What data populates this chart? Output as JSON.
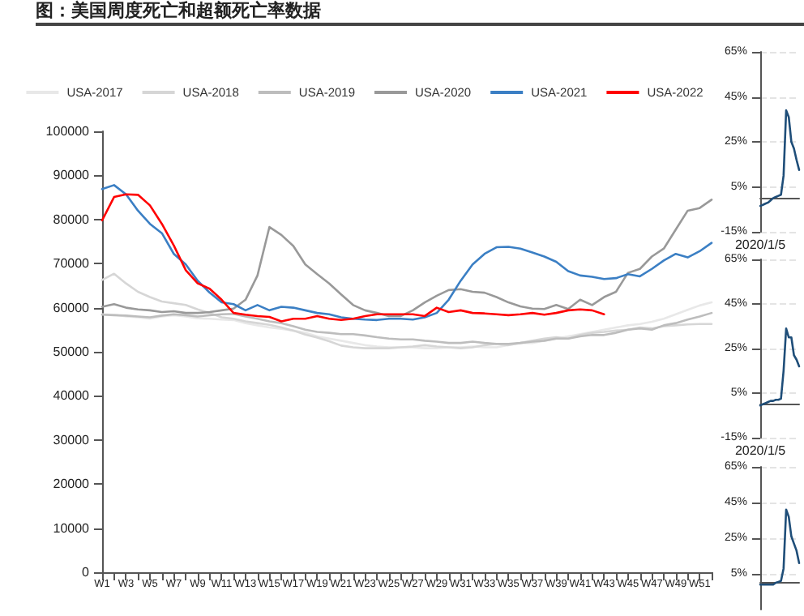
{
  "chart_data": [
    {
      "type": "line",
      "title": "图：美国周度死亡和超额死亡率数据",
      "categories": [
        "W1",
        null,
        "W3",
        null,
        "W5",
        null,
        "W7",
        null,
        "W9",
        null,
        "W11",
        null,
        "W13",
        null,
        "W15",
        null,
        "W17",
        null,
        "W19",
        null,
        "W21",
        null,
        "W23",
        null,
        "W25",
        null,
        "W27",
        null,
        "W29",
        null,
        "W31",
        null,
        "W33",
        null,
        "W35",
        null,
        "W37",
        null,
        "W39",
        null,
        "W41",
        null,
        "W43",
        null,
        "W45",
        null,
        "W47",
        null,
        "W49",
        null,
        "W51",
        null
      ],
      "ylim": [
        0,
        100000
      ],
      "yticks": [
        0,
        10000,
        20000,
        30000,
        40000,
        50000,
        60000,
        70000,
        80000,
        90000,
        100000
      ],
      "grid": false,
      "legend": "top",
      "marker": "none",
      "line_style": "solid",
      "series": [
        {
          "name": "USA-2017",
          "color": "#e8e8e8",
          "values": [
            58500,
            58400,
            58000,
            57800,
            57500,
            58000,
            58300,
            58000,
            57600,
            57500,
            57300,
            57200,
            56500,
            56000,
            55500,
            55200,
            54800,
            54300,
            53500,
            53000,
            52500,
            52000,
            51500,
            51200,
            51000,
            51000,
            51000,
            50800,
            50800,
            51000,
            51000,
            51200,
            51000,
            51000,
            51500,
            52000,
            52000,
            52500,
            53000,
            53500,
            54000,
            54500,
            55000,
            55500,
            56000,
            56300,
            56800,
            57500,
            58500,
            59500,
            60500,
            61200
          ]
        },
        {
          "name": "USA-2018",
          "color": "#d6d6d6",
          "values": [
            66300,
            67700,
            65500,
            63600,
            62400,
            61400,
            61000,
            60600,
            59600,
            58800,
            57800,
            57500,
            56900,
            56500,
            56100,
            55500,
            54800,
            53900,
            53200,
            52400,
            51400,
            51000,
            50800,
            50800,
            50800,
            51000,
            51200,
            51500,
            51200,
            51000,
            50800,
            51000,
            51500,
            51800,
            51500,
            52000,
            52500,
            53000,
            53300,
            53000,
            53800,
            54300,
            54500,
            54800,
            55000,
            55500,
            55300,
            55800,
            56000,
            56200,
            56300,
            56300
          ]
        },
        {
          "name": "USA-2019",
          "color": "#bdbdbd",
          "values": [
            58400,
            58300,
            58200,
            58000,
            57800,
            58200,
            58500,
            58300,
            58000,
            58300,
            58500,
            58600,
            58000,
            57500,
            56900,
            56500,
            55800,
            55000,
            54500,
            54300,
            54000,
            54000,
            53700,
            53300,
            53000,
            52800,
            52800,
            52500,
            52300,
            52000,
            52000,
            52300,
            52000,
            51800,
            51800,
            52000,
            52300,
            52500,
            53000,
            53000,
            53500,
            53800,
            53800,
            54300,
            55000,
            55300,
            55000,
            56000,
            56500,
            57300,
            58000,
            58800
          ]
        },
        {
          "name": "USA-2020",
          "color": "#999999",
          "values": [
            60200,
            60800,
            60000,
            59600,
            59400,
            59000,
            59200,
            58800,
            58800,
            59000,
            59400,
            59800,
            61800,
            67300,
            78300,
            76500,
            74000,
            69800,
            67600,
            65500,
            63000,
            60600,
            59400,
            58800,
            58100,
            58100,
            59400,
            61200,
            62700,
            64000,
            64200,
            63600,
            63400,
            62400,
            61200,
            60300,
            59800,
            59700,
            60600,
            59700,
            61800,
            60600,
            62400,
            63600,
            67900,
            68800,
            71600,
            73400,
            77700,
            82000,
            82600,
            84500
          ]
        },
        {
          "name": "USA-2021",
          "color": "#3b7fc4",
          "values": [
            86900,
            87800,
            85700,
            82000,
            79000,
            76900,
            72200,
            69800,
            66100,
            63400,
            61200,
            60800,
            59400,
            60600,
            59400,
            60200,
            60000,
            59400,
            58800,
            58500,
            57800,
            57500,
            57300,
            57200,
            57500,
            57500,
            57300,
            57800,
            58800,
            61800,
            66100,
            69800,
            72200,
            73700,
            73800,
            73400,
            72500,
            71600,
            70400,
            68300,
            67300,
            67000,
            66500,
            66700,
            67600,
            67100,
            68800,
            70700,
            72200,
            71400,
            72800,
            74700
          ]
        },
        {
          "name": "USA-2022",
          "color": "#ff0000",
          "values": [
            79800,
            85100,
            85700,
            85600,
            83200,
            79000,
            74100,
            68500,
            65500,
            64300,
            61800,
            58800,
            58400,
            58100,
            57900,
            56900,
            57500,
            57500,
            58100,
            57500,
            57200,
            57500,
            58100,
            58500,
            58500,
            58500,
            58500,
            58100,
            60000,
            59000,
            59400,
            58800,
            58700,
            58500,
            58300,
            58500,
            58800,
            58400,
            58800,
            59400,
            59600,
            59400,
            58500,
            null,
            null,
            null,
            null,
            null,
            null,
            null,
            null,
            null
          ]
        }
      ]
    },
    {
      "type": "line",
      "categories": [
        "2020/1/5",
        null,
        null,
        null,
        null,
        null,
        null,
        null,
        null,
        null,
        null,
        null,
        null,
        null,
        null,
        null
      ],
      "ylim": [
        -15,
        65
      ],
      "yticks": [
        {
          "value": 65,
          "label": "65%"
        },
        {
          "value": 45,
          "label": "45%"
        },
        {
          "value": 25,
          "label": "25%"
        },
        {
          "value": 5,
          "label": "5%"
        },
        {
          "value": -15,
          "label": "-15%"
        }
      ],
      "grid": "y",
      "marker": "none",
      "series": [
        {
          "color": "#1f4e79",
          "values": [
            -3.5,
            -3,
            -2.5,
            -2,
            -1,
            0,
            0.5,
            1,
            1.5,
            10,
            39,
            36,
            25,
            22,
            17,
            12.5
          ]
        }
      ]
    },
    {
      "type": "line",
      "categories": [
        "2020/1/5",
        null,
        null,
        null,
        null,
        null,
        null,
        null,
        null,
        null,
        null,
        null,
        null,
        null,
        null,
        null
      ],
      "ylim": [
        -15,
        65
      ],
      "yticks": [
        {
          "value": 65,
          "label": "65%"
        },
        {
          "value": 45,
          "label": "45%"
        },
        {
          "value": 25,
          "label": "25%"
        },
        {
          "value": 5,
          "label": "5%"
        },
        {
          "value": -15,
          "label": "-15%"
        }
      ],
      "grid": "y",
      "marker": "none",
      "series": [
        {
          "color": "#1f4e79",
          "values": [
            -0.5,
            0,
            0.5,
            1,
            1.5,
            1.5,
            2,
            2,
            2.5,
            15,
            34,
            30,
            30,
            22,
            20,
            17
          ]
        }
      ]
    },
    {
      "type": "line",
      "categories": [
        null,
        null,
        null,
        null,
        null,
        null,
        null,
        null,
        null,
        null,
        null,
        null,
        null,
        null,
        null,
        null
      ],
      "ylim": [
        -15,
        65
      ],
      "yticks": [
        {
          "value": 65,
          "label": "65%"
        },
        {
          "value": 45,
          "label": "45%"
        },
        {
          "value": 25,
          "label": "25%"
        },
        {
          "value": 5,
          "label": "5%"
        }
      ],
      "grid": "y",
      "marker": "none",
      "series": [
        {
          "color": "#1f4e79",
          "values": [
            -1,
            -1,
            -1,
            -1,
            -1,
            -1,
            0,
            0.5,
            1,
            8,
            41,
            37,
            26,
            22,
            18,
            11
          ]
        }
      ]
    }
  ]
}
